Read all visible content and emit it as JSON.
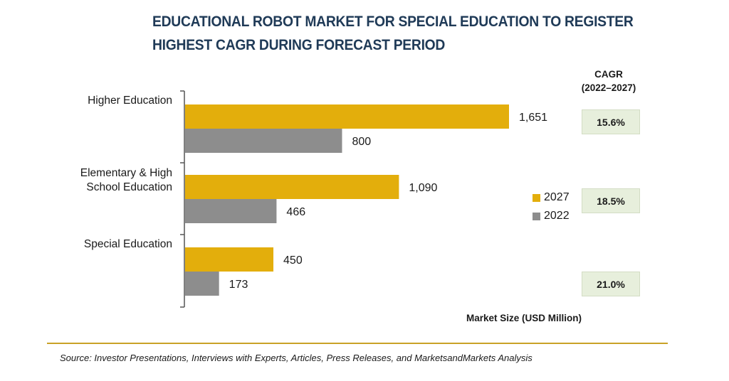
{
  "chart_data": {
    "type": "bar",
    "orientation": "horizontal",
    "title": "EDUCATIONAL ROBOT MARKET FOR SPECIAL EDUCATION TO REGISTER HIGHEST CAGR DURING FORECAST PERIOD",
    "categories": [
      "Higher Education",
      "Elementary & High School Education",
      "Special Education"
    ],
    "category_label_lines": [
      [
        "Higher Education"
      ],
      [
        "Elementary & High",
        "School Education"
      ],
      [
        "Special Education"
      ]
    ],
    "series": [
      {
        "name": "2027",
        "values": [
          1651,
          1090,
          450
        ],
        "value_labels": [
          "1,651",
          "1,090",
          "450"
        ],
        "color": "#e3ae0c"
      },
      {
        "name": "2022",
        "values": [
          800,
          466,
          173
        ],
        "value_labels": [
          "800",
          "466",
          "173"
        ],
        "color": "#8d8d8d"
      }
    ],
    "xlabel": "Market Size (USD Million)",
    "xlim": [
      0,
      1651
    ],
    "grid": false,
    "legend_position": "right",
    "cagr": {
      "header": [
        "CAGR",
        "(2022–2027)"
      ],
      "values": [
        "15.6%",
        "18.5%",
        "21.0%"
      ]
    },
    "source": "Source: Investor Presentations, Interviews with Experts, Articles, Press Releases, and MarketsandMarkets Analysis"
  }
}
